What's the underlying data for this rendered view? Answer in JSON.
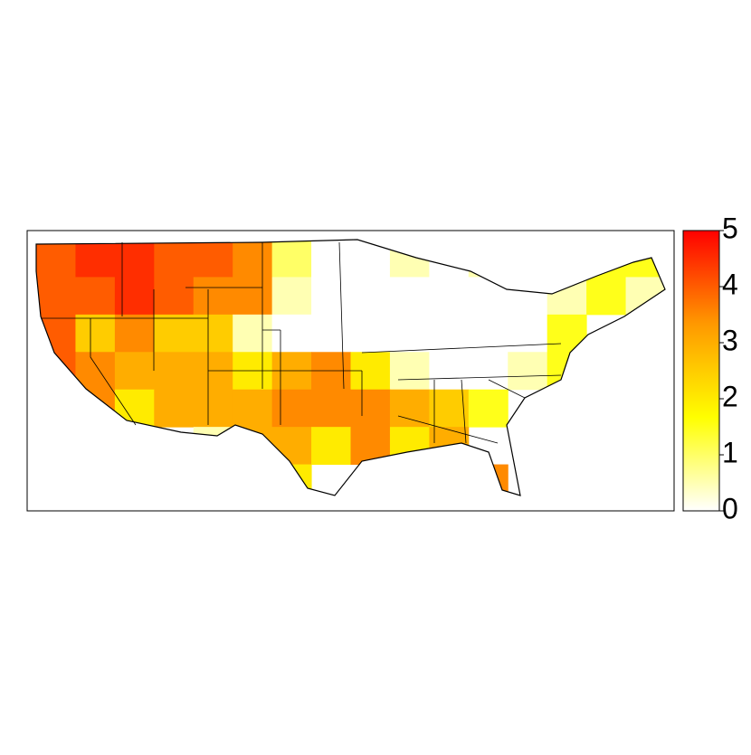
{
  "chart_data": {
    "type": "heatmap",
    "grid": {
      "values": [
        [
          4,
          4.5,
          4.5,
          4,
          4,
          3.5,
          1,
          0,
          0,
          0.5,
          0,
          0.5,
          0,
          1,
          1.5,
          1.5
        ],
        [
          4,
          4,
          4.5,
          4,
          3.5,
          3.5,
          0.5,
          0,
          0,
          0,
          0,
          0,
          0,
          0.5,
          1.5,
          0.5
        ],
        [
          4,
          2.5,
          3.5,
          2.5,
          2.5,
          0.5,
          0,
          0,
          0,
          0,
          0,
          0,
          0,
          1.5,
          null,
          null
        ],
        [
          4,
          3.5,
          3,
          3,
          3,
          2,
          3,
          3.5,
          2,
          0.5,
          0,
          0,
          0.5,
          1.5,
          null,
          null
        ],
        [
          3,
          3.5,
          2,
          3,
          3,
          3,
          3.5,
          3.5,
          3.5,
          3,
          2.5,
          1.5,
          null,
          null,
          null,
          null
        ],
        [
          null,
          null,
          null,
          null,
          0.5,
          3,
          3,
          2,
          3.5,
          2,
          3,
          null,
          null,
          null,
          null,
          null
        ],
        [
          null,
          null,
          null,
          null,
          null,
          null,
          2,
          null,
          null,
          null,
          null,
          3.5,
          null,
          null,
          null,
          null
        ]
      ]
    },
    "colorbar": {
      "lim": [
        0,
        5
      ],
      "ticks": [
        0,
        1,
        2,
        3,
        4,
        5
      ],
      "colors": [
        "#ffffff",
        "#ffff00",
        "#ff9900",
        "#ff0000"
      ]
    }
  }
}
